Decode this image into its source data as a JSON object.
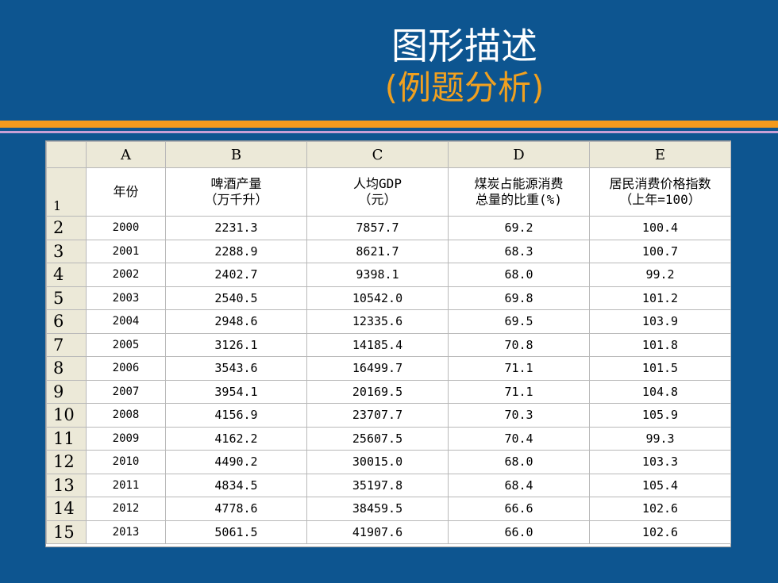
{
  "slide": {
    "title": "图形描述",
    "subtitle": "(例题分析)"
  },
  "table": {
    "column_letters": [
      "A",
      "B",
      "C",
      "D",
      "E"
    ],
    "header_row_number": "1",
    "headers": [
      {
        "line1": "年份",
        "line2": ""
      },
      {
        "line1": "啤酒产量",
        "line2": "（万千升）"
      },
      {
        "line1": "人均GDP",
        "line2": "（元）"
      },
      {
        "line1": "煤炭占能源消费",
        "line2": "总量的比重(%)"
      },
      {
        "line1": "居民消费价格指数",
        "line2": "（上年=100）"
      }
    ],
    "rows": [
      {
        "n": "2",
        "year": "2000",
        "beer": "2231.3",
        "gdp": "7857.7",
        "coal": "69.2",
        "cpi": "100.4"
      },
      {
        "n": "3",
        "year": "2001",
        "beer": "2288.9",
        "gdp": "8621.7",
        "coal": "68.3",
        "cpi": "100.7"
      },
      {
        "n": "4",
        "year": "2002",
        "beer": "2402.7",
        "gdp": "9398.1",
        "coal": "68.0",
        "cpi": "99.2"
      },
      {
        "n": "5",
        "year": "2003",
        "beer": "2540.5",
        "gdp": "10542.0",
        "coal": "69.8",
        "cpi": "101.2"
      },
      {
        "n": "6",
        "year": "2004",
        "beer": "2948.6",
        "gdp": "12335.6",
        "coal": "69.5",
        "cpi": "103.9"
      },
      {
        "n": "7",
        "year": "2005",
        "beer": "3126.1",
        "gdp": "14185.4",
        "coal": "70.8",
        "cpi": "101.8"
      },
      {
        "n": "8",
        "year": "2006",
        "beer": "3543.6",
        "gdp": "16499.7",
        "coal": "71.1",
        "cpi": "101.5"
      },
      {
        "n": "9",
        "year": "2007",
        "beer": "3954.1",
        "gdp": "20169.5",
        "coal": "71.1",
        "cpi": "104.8"
      },
      {
        "n": "10",
        "year": "2008",
        "beer": "4156.9",
        "gdp": "23707.7",
        "coal": "70.3",
        "cpi": "105.9"
      },
      {
        "n": "11",
        "year": "2009",
        "beer": "4162.2",
        "gdp": "25607.5",
        "coal": "70.4",
        "cpi": "99.3"
      },
      {
        "n": "12",
        "year": "2010",
        "beer": "4490.2",
        "gdp": "30015.0",
        "coal": "68.0",
        "cpi": "103.3"
      },
      {
        "n": "13",
        "year": "2011",
        "beer": "4834.5",
        "gdp": "35197.8",
        "coal": "68.4",
        "cpi": "105.4"
      },
      {
        "n": "14",
        "year": "2012",
        "beer": "4778.6",
        "gdp": "38459.5",
        "coal": "66.6",
        "cpi": "102.6"
      },
      {
        "n": "15",
        "year": "2013",
        "beer": "5061.5",
        "gdp": "41907.6",
        "coal": "66.0",
        "cpi": "102.6"
      }
    ]
  },
  "colors": {
    "background": "#0d5590",
    "accent_orange": "#f39a1d",
    "accent_pink": "#c8a0d6",
    "subtitle": "#f0a020"
  }
}
